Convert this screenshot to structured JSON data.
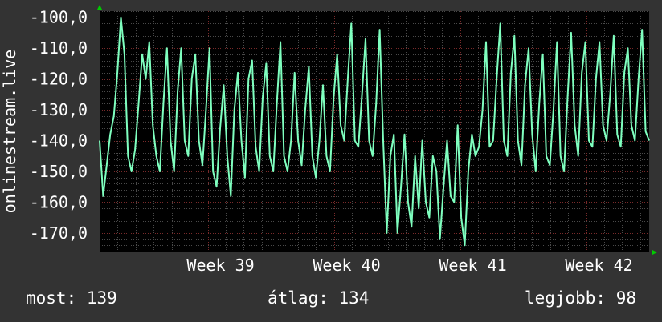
{
  "chart_data": {
    "type": "line",
    "title": "",
    "ylabel": "onlinestream.live",
    "xlabel": "",
    "ylim": [
      -176,
      -98
    ],
    "y_ticks": [
      -100,
      -110,
      -120,
      -130,
      -140,
      -150,
      -160,
      -170
    ],
    "y_tick_labels": [
      "-100,0",
      "-110,0",
      "-120,0",
      "-130,0",
      "-140,0",
      "-150,0",
      "-160,0",
      "-170,0"
    ],
    "x_range": [
      0,
      30.5
    ],
    "x_ticks": [
      {
        "x": 6,
        "label": "Week 39"
      },
      {
        "x": 13,
        "label": "Week 40"
      },
      {
        "x": 20,
        "label": "Week 41"
      },
      {
        "x": 27,
        "label": "Week 42"
      }
    ],
    "grid": true,
    "line_color": "#7fffbf",
    "background": "#000000",
    "grid_color": "#4a4a4a",
    "grid_accent_color": "#7a2a2a",
    "axis_arrow_color": "#00cc00",
    "series": [
      {
        "values": [
          -140,
          -158,
          -148,
          -138,
          -132,
          -118,
          -100,
          -112,
          -145,
          -150,
          -143,
          -128,
          -112,
          -120,
          -108,
          -135,
          -145,
          -150,
          -128,
          -110,
          -140,
          -150,
          -124,
          -110,
          -140,
          -145,
          -120,
          -112,
          -140,
          -148,
          -130,
          -110,
          -150,
          -155,
          -136,
          -122,
          -145,
          -158,
          -130,
          -118,
          -140,
          -152,
          -120,
          -114,
          -142,
          -150,
          -126,
          -115,
          -145,
          -150,
          -128,
          -108,
          -145,
          -150,
          -140,
          -118,
          -140,
          -148,
          -130,
          -116,
          -145,
          -152,
          -140,
          -122,
          -145,
          -150,
          -126,
          -112,
          -135,
          -140,
          -120,
          -102,
          -140,
          -142,
          -125,
          -107,
          -140,
          -145,
          -128,
          -104,
          -140,
          -170,
          -145,
          -138,
          -170,
          -155,
          -138,
          -160,
          -168,
          -145,
          -162,
          -140,
          -160,
          -165,
          -145,
          -150,
          -172,
          -155,
          -140,
          -158,
          -160,
          -135,
          -165,
          -174,
          -150,
          -138,
          -145,
          -142,
          -130,
          -108,
          -142,
          -140,
          -120,
          -102,
          -140,
          -145,
          -118,
          -106,
          -140,
          -148,
          -122,
          -110,
          -138,
          -150,
          -128,
          -112,
          -145,
          -148,
          -130,
          -108,
          -145,
          -150,
          -126,
          -105,
          -135,
          -145,
          -118,
          -108,
          -140,
          -142,
          -120,
          -108,
          -135,
          -140,
          -125,
          -106,
          -138,
          -142,
          -118,
          -110,
          -135,
          -140,
          -120,
          -104,
          -137,
          -140
        ],
        "color": "#7fffbf"
      }
    ],
    "stats": {
      "now_label": "most: 139",
      "avg_label": "átlag: 134",
      "best_label": "legjobb: 98"
    }
  }
}
